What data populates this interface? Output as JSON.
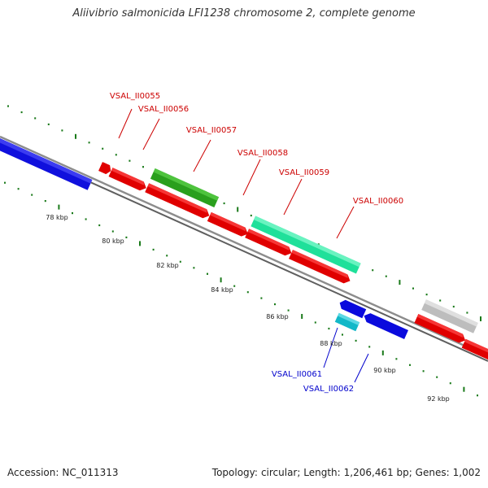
{
  "title": "Aliivibrio salmonicida LFI1238 chromosome 2, complete genome",
  "footer": {
    "accession_label": "Accession:",
    "accession": "NC_011313",
    "topology_label": "Topology:",
    "topology": "circular;",
    "length_label": "Length:",
    "length": "1,206,461 bp;",
    "genes_label": "Genes:",
    "genes": "1,002"
  },
  "colors": {
    "backbone": "#8c8c8c",
    "tick": "#1a7a1a",
    "label_forward": "#cc0000",
    "label_reverse": "#0000cc"
  },
  "ruler": {
    "unit": "kbp",
    "ticks": [
      "78 kbp",
      "80 kbp",
      "82 kbp",
      "84 kbp",
      "86 kbp",
      "88 kbp",
      "90 kbp",
      "92 kbp"
    ]
  },
  "genes": [
    {
      "id": "VSAL_II0055",
      "strand": "forward",
      "color": "#e80000"
    },
    {
      "id": "VSAL_II0056",
      "strand": "forward",
      "color": "#e80000"
    },
    {
      "id": "VSAL_II0057",
      "strand": "forward",
      "color": "#33aa22"
    },
    {
      "id": "VSAL_II0058",
      "strand": "forward",
      "color": "#e80000"
    },
    {
      "id": "VSAL_II0059",
      "strand": "forward",
      "color": "#e80000"
    },
    {
      "id": "VSAL_II0060",
      "strand": "forward",
      "color": "#22e6a0"
    },
    {
      "id": "VSAL_II0061",
      "strand": "reverse",
      "color": "#0000dd"
    },
    {
      "id": "VSAL_II0062",
      "strand": "reverse",
      "color": "#11bbcc"
    }
  ]
}
